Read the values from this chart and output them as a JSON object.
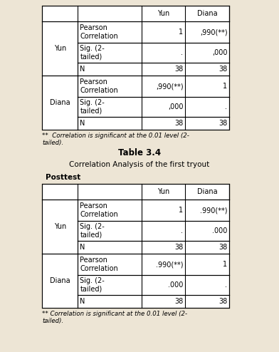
{
  "title": "Table 3.4",
  "subtitle": "Correlation Analysis of the first tryout",
  "section_label": "Posttest",
  "footnote1_line1": "**  Correlation is significant at the 0.01 level (2-",
  "footnote1_line2": "tailed).",
  "table_headers": [
    "",
    "Yun",
    "Diana"
  ],
  "table1_rows": [
    [
      "Pearson\nCorrelation",
      "1",
      ",990(**)"
    ],
    [
      "Sig. (2-\ntailed)",
      ".",
      ",000"
    ],
    [
      "N",
      "38",
      "38"
    ],
    [
      "Pearson\nCorrelation",
      ",990(**)",
      "1"
    ],
    [
      "Sig. (2-\ntailed)",
      ",000",
      "."
    ],
    [
      "N",
      "38",
      "38"
    ]
  ],
  "table1_row_labels": [
    "Yun",
    "",
    "",
    "Diana",
    "",
    ""
  ],
  "table2_rows": [
    [
      "Pearson\nCorrelation",
      "1",
      ".990(**)"
    ],
    [
      "Sig. (2-\ntailed)",
      ".",
      ".000"
    ],
    [
      "N",
      "38",
      "38"
    ],
    [
      "Pearson\nCorrelation",
      ".990(**)",
      "1"
    ],
    [
      "Sig. (2-\ntailed)",
      ".000",
      "."
    ],
    [
      "N",
      "38",
      "38"
    ]
  ],
  "table2_row_labels": [
    "Yun",
    "",
    "",
    "Diana",
    "",
    ""
  ],
  "bg_color": "#ede5d5",
  "table_bg": "#ffffff",
  "text_color": "#000000",
  "line_color": "#000000",
  "fig_width": 3.92,
  "fig_height": 4.94,
  "dpi": 100
}
